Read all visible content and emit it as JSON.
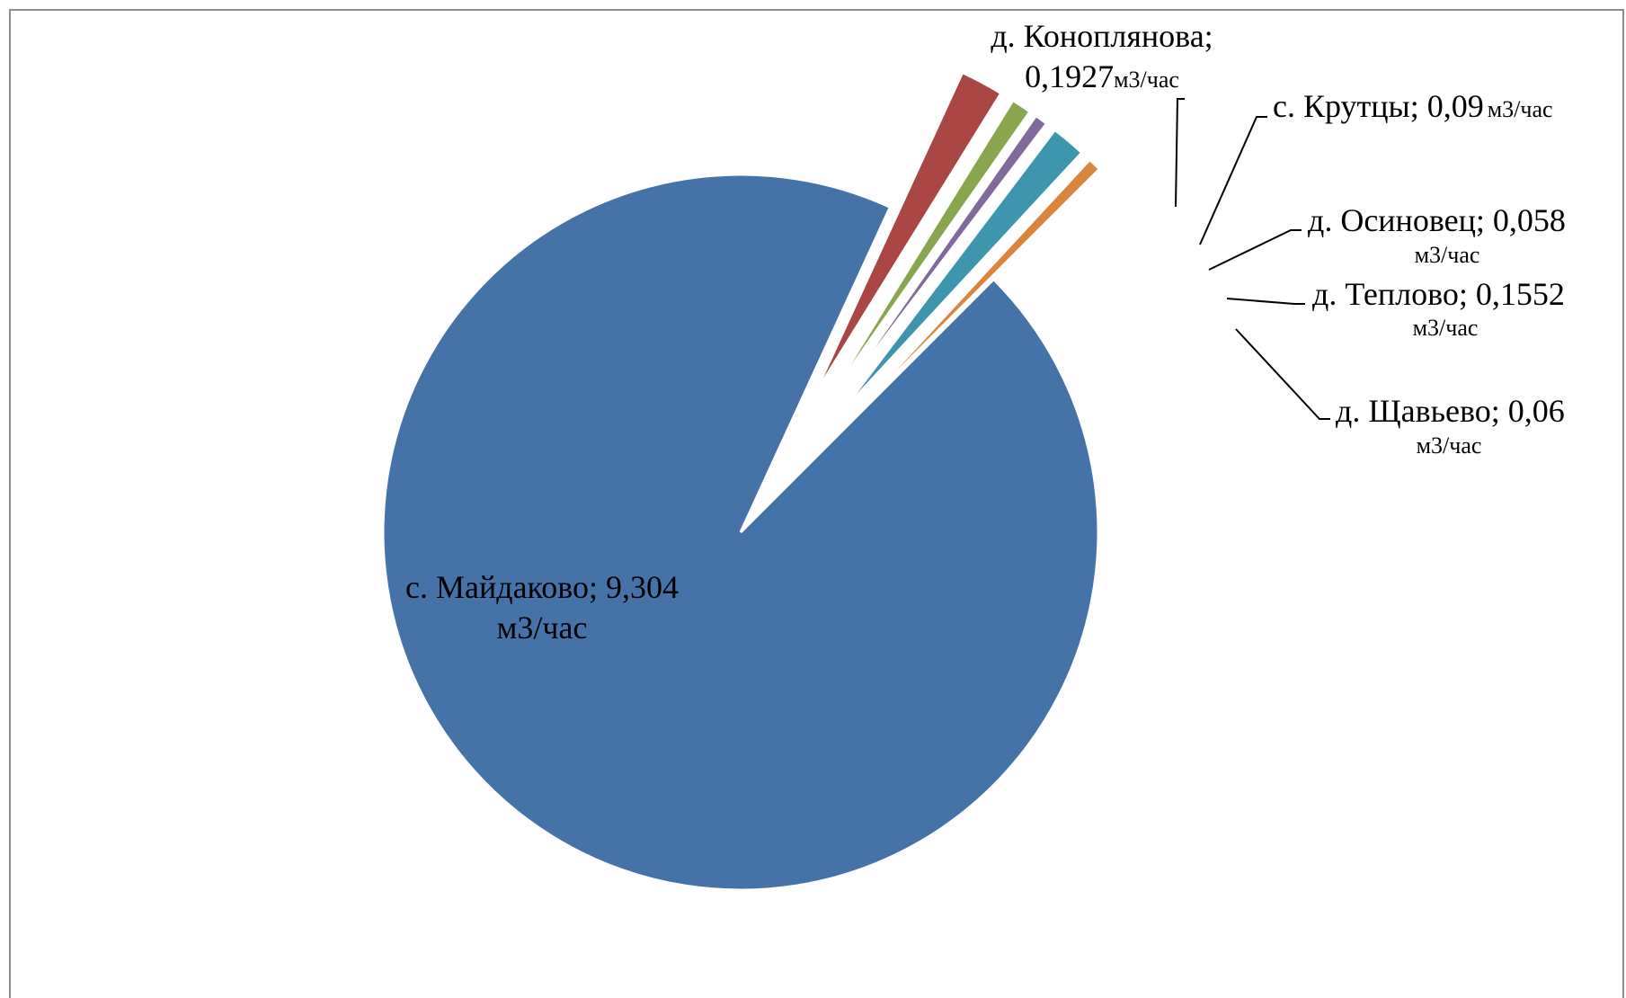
{
  "chart_data": {
    "type": "pie",
    "title": "",
    "unit": "м3/час",
    "slices": [
      {
        "name": "с. Майдаково",
        "value": 9.304,
        "color": "#4572A7",
        "label_main": "с. Майдаково; 9,304",
        "label_unit": "м3/час"
      },
      {
        "name": "д. Коноплянова",
        "value": 0.1927,
        "color": "#AA4643",
        "label_main": "д. Коноплянова;",
        "label_value": "0,1927",
        "label_unit": "м3/час"
      },
      {
        "name": "с. Крутцы",
        "value": 0.09,
        "color": "#89A54E",
        "label_main": "с. Крутцы; 0,09",
        "label_unit": "м3/час"
      },
      {
        "name": "д. Осиновец",
        "value": 0.058,
        "color": "#80699B",
        "label_main": "д. Осиновец; 0,058",
        "label_unit": "м3/час"
      },
      {
        "name": "д. Теплово",
        "value": 0.1552,
        "color": "#3D96AE",
        "label_main": "д. Теплово; 0,1552",
        "label_unit": "м3/час"
      },
      {
        "name": "д. Щавьево",
        "value": 0.06,
        "color": "#DB843D",
        "label_main": "д. Щавьево; 0,06",
        "label_unit": "м3/час"
      }
    ]
  }
}
